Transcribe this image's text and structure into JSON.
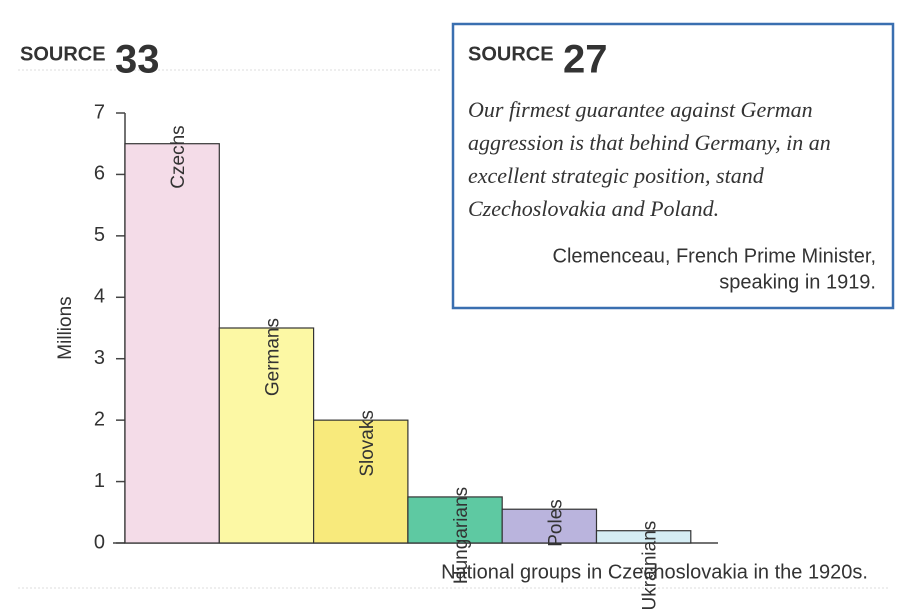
{
  "chart_data": {
    "type": "bar",
    "source_label": "SOURCE",
    "source_number": "33",
    "ylabel": "Millions",
    "caption": "National groups in Czechoslovakia in the 1920s.",
    "categories": [
      "Czechs",
      "Germans",
      "Slovaks",
      "Hungarians",
      "Poles",
      "Ukrainians"
    ],
    "values": [
      6.5,
      3.5,
      2.0,
      0.75,
      0.55,
      0.2
    ],
    "colors": [
      "#f4dce8",
      "#fcf8a4",
      "#f8ea7c",
      "#5ec9a2",
      "#bab4dd",
      "#d5edf4"
    ],
    "ylim": [
      0,
      7
    ],
    "yticks": [
      0,
      1,
      2,
      3,
      4,
      5,
      6,
      7
    ],
    "grid": false
  },
  "source_box": {
    "label": "SOURCE",
    "number": "27",
    "quote": [
      "Our firmest guarantee against German",
      "aggression is that behind Germany, in an",
      "excellent strategic position, stand",
      "Czechoslovakia and Poland."
    ],
    "attribution": [
      "Clemenceau, French Prime Minister,",
      "speaking in 1919."
    ]
  }
}
